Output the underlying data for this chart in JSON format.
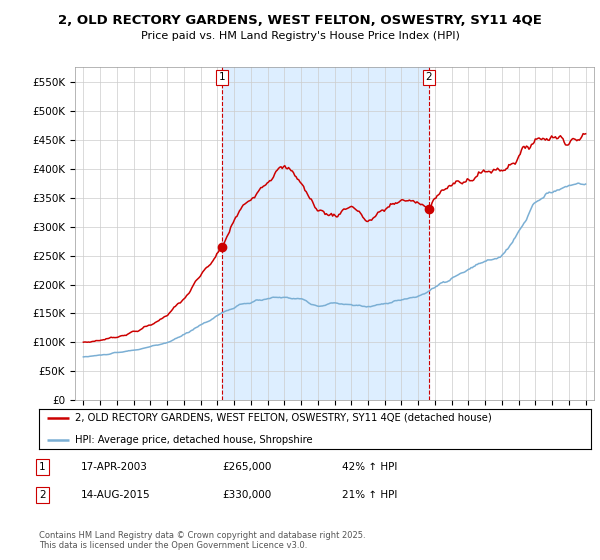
{
  "title_line1": "2, OLD RECTORY GARDENS, WEST FELTON, OSWESTRY, SY11 4QE",
  "title_line2": "Price paid vs. HM Land Registry's House Price Index (HPI)",
  "ylabel_ticks": [
    "£0",
    "£50K",
    "£100K",
    "£150K",
    "£200K",
    "£250K",
    "£300K",
    "£350K",
    "£400K",
    "£450K",
    "£500K",
    "£550K"
  ],
  "ytick_values": [
    0,
    50000,
    100000,
    150000,
    200000,
    250000,
    300000,
    350000,
    400000,
    450000,
    500000,
    550000
  ],
  "ylim": [
    0,
    575000
  ],
  "xlim_start": 1994.5,
  "xlim_end": 2025.5,
  "xtick_years": [
    1995,
    1996,
    1997,
    1998,
    1999,
    2000,
    2001,
    2002,
    2003,
    2004,
    2005,
    2006,
    2007,
    2008,
    2009,
    2010,
    2011,
    2012,
    2013,
    2014,
    2015,
    2016,
    2017,
    2018,
    2019,
    2020,
    2021,
    2022,
    2023,
    2024,
    2025
  ],
  "line_property_color": "#cc0000",
  "line_hpi_color": "#7bafd4",
  "shade_color": "#ddeeff",
  "sale1_year": 2003.29,
  "sale1_price": 265000,
  "sale2_year": 2015.62,
  "sale2_price": 330000,
  "legend_property": "2, OLD RECTORY GARDENS, WEST FELTON, OSWESTRY, SY11 4QE (detached house)",
  "legend_hpi": "HPI: Average price, detached house, Shropshire",
  "note1_label": "1",
  "note1_date": "17-APR-2003",
  "note1_price": "£265,000",
  "note1_change": "42% ↑ HPI",
  "note2_label": "2",
  "note2_date": "14-AUG-2015",
  "note2_price": "£330,000",
  "note2_change": "21% ↑ HPI",
  "footer": "Contains HM Land Registry data © Crown copyright and database right 2025.\nThis data is licensed under the Open Government Licence v3.0.",
  "background_color": "#ffffff",
  "grid_color": "#cccccc"
}
